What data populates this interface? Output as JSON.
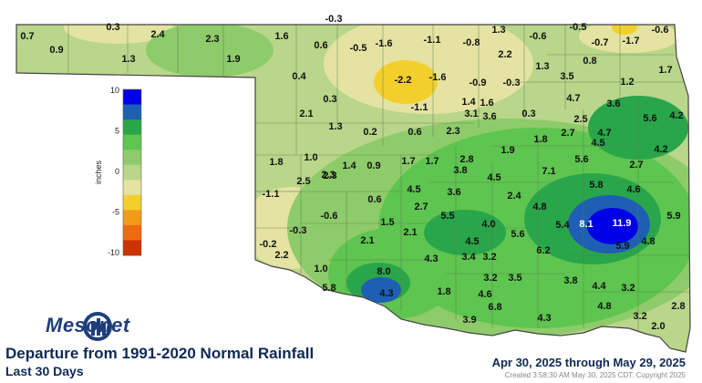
{
  "title": "Departure from 1991-2020 Normal Rainfall",
  "subtitle": "Last 30 Days",
  "date_range": "Apr 30, 2025 through May 29, 2025",
  "created": "Created 3:58:30 AM May 30, 2025 CDT. Copyright 2025",
  "logo_text": "Mesonet",
  "legend": {
    "unit": "inches",
    "ticks": [
      "10",
      "5",
      "0",
      "-5",
      "-10"
    ],
    "bins": [
      {
        "label": "10",
        "color": "#0000e6"
      },
      {
        "label": "7.5",
        "color": "#1e5fb4"
      },
      {
        "label": "5",
        "color": "#2aa64a"
      },
      {
        "label": "3",
        "color": "#5ec550"
      },
      {
        "label": "1",
        "color": "#8ecb6a"
      },
      {
        "label": "0",
        "color": "#b9d68b"
      },
      {
        "label": "-1",
        "color": "#e4e3a2"
      },
      {
        "label": "-2.5",
        "color": "#f2cf2c"
      },
      {
        "label": "-5",
        "color": "#f29a1a"
      },
      {
        "label": "-7.5",
        "color": "#ee6a10"
      },
      {
        "label": "-10",
        "color": "#cc3300"
      }
    ]
  },
  "colors": {
    "state_fill": "#b9d68b",
    "county_lines": "#5a7a4a",
    "dry_light": "#e4e3a2",
    "dry": "#f2cf2c",
    "wet_1": "#8ecb6a",
    "wet_2": "#5ec550",
    "wet_3": "#2aa64a",
    "wet_4": "#1e5fb4",
    "wet_5": "#0000e6"
  },
  "stations": [
    {
      "v": "-0.3"
    },
    {
      "v": "0.7"
    },
    {
      "v": "0.9"
    },
    {
      "v": "0.3"
    },
    {
      "v": "2.4"
    },
    {
      "v": "1.3"
    },
    {
      "v": "2.3"
    },
    {
      "v": "1.9"
    },
    {
      "v": "1.6"
    },
    {
      "v": "0.6"
    },
    {
      "v": "-0.5"
    },
    {
      "v": "-1.6"
    },
    {
      "v": "-1.1"
    },
    {
      "v": "-0.8"
    },
    {
      "v": "1.3"
    },
    {
      "v": "-0.6"
    },
    {
      "v": "-0.5"
    },
    {
      "v": "-0.7"
    },
    {
      "v": "-1.7"
    },
    {
      "v": "-0.6"
    },
    {
      "v": "0.4"
    },
    {
      "v": "-2.2"
    },
    {
      "v": "-1.6"
    },
    {
      "v": "2.2"
    },
    {
      "v": "1.3"
    },
    {
      "v": "0.8"
    },
    {
      "v": "1.7"
    },
    {
      "v": "-0.9"
    },
    {
      "v": "-0.3"
    },
    {
      "v": "3.5"
    },
    {
      "v": "1.2"
    },
    {
      "v": "0.3"
    },
    {
      "v": "-1.1"
    },
    {
      "v": "1.4"
    },
    {
      "v": "1.6"
    },
    {
      "v": "3.1"
    },
    {
      "v": "3.6"
    },
    {
      "v": "4.7"
    },
    {
      "v": "3.6"
    },
    {
      "v": "2.1"
    },
    {
      "v": "0.3"
    },
    {
      "v": "5.6"
    },
    {
      "v": "4.2"
    },
    {
      "v": "1.3"
    },
    {
      "v": "2.5"
    },
    {
      "v": "0.2"
    },
    {
      "v": "0.6"
    },
    {
      "v": "2.3"
    },
    {
      "v": "1.8"
    },
    {
      "v": "2.7"
    },
    {
      "v": "4.7"
    },
    {
      "v": "4.5"
    },
    {
      "v": "1.9"
    },
    {
      "v": "4.2"
    },
    {
      "v": "1.8"
    },
    {
      "v": "1.0"
    },
    {
      "v": "1.4"
    },
    {
      "v": "0.9"
    },
    {
      "v": "1.7"
    },
    {
      "v": "1.7"
    },
    {
      "v": "2.8"
    },
    {
      "v": "4.5"
    },
    {
      "v": "2.7"
    },
    {
      "v": "3.8"
    },
    {
      "v": "7.1"
    },
    {
      "v": "5.6"
    },
    {
      "v": "2.5"
    },
    {
      "v": "2.3"
    },
    {
      "v": "4.5"
    },
    {
      "v": "2.3"
    },
    {
      "v": "5.8"
    },
    {
      "v": "4.6"
    },
    {
      "v": "-1.1"
    },
    {
      "v": "0.6"
    },
    {
      "v": "2.7"
    },
    {
      "v": "3.6"
    },
    {
      "v": "2.4"
    },
    {
      "v": "4.8"
    },
    {
      "v": "-0.6"
    },
    {
      "v": "5.5"
    },
    {
      "v": "4.0"
    },
    {
      "v": "5.4"
    },
    {
      "v": "8.1"
    },
    {
      "v": "11.9"
    },
    {
      "v": "5.9"
    },
    {
      "v": "1.5"
    },
    {
      "v": "5.6"
    },
    {
      "v": "-0.3"
    },
    {
      "v": "2.1"
    },
    {
      "v": "-0.2"
    },
    {
      "v": "2.1"
    },
    {
      "v": "4.5"
    },
    {
      "v": "6.2"
    },
    {
      "v": "5.9"
    },
    {
      "v": "4.8"
    },
    {
      "v": "2.2"
    },
    {
      "v": "3.4"
    },
    {
      "v": "3.2"
    },
    {
      "v": "1.0"
    },
    {
      "v": "4.3"
    },
    {
      "v": "8.0"
    },
    {
      "v": "3.5"
    },
    {
      "v": "3.8"
    },
    {
      "v": "5.8"
    },
    {
      "v": "3.2"
    },
    {
      "v": "4.4"
    },
    {
      "v": "3.2"
    },
    {
      "v": "4.3"
    },
    {
      "v": "1.8"
    },
    {
      "v": "4.6"
    },
    {
      "v": "6.8"
    },
    {
      "v": "4.8"
    },
    {
      "v": "2.8"
    },
    {
      "v": "3.9"
    },
    {
      "v": "4.3"
    },
    {
      "v": "3.2"
    },
    {
      "v": "2.0"
    }
  ]
}
